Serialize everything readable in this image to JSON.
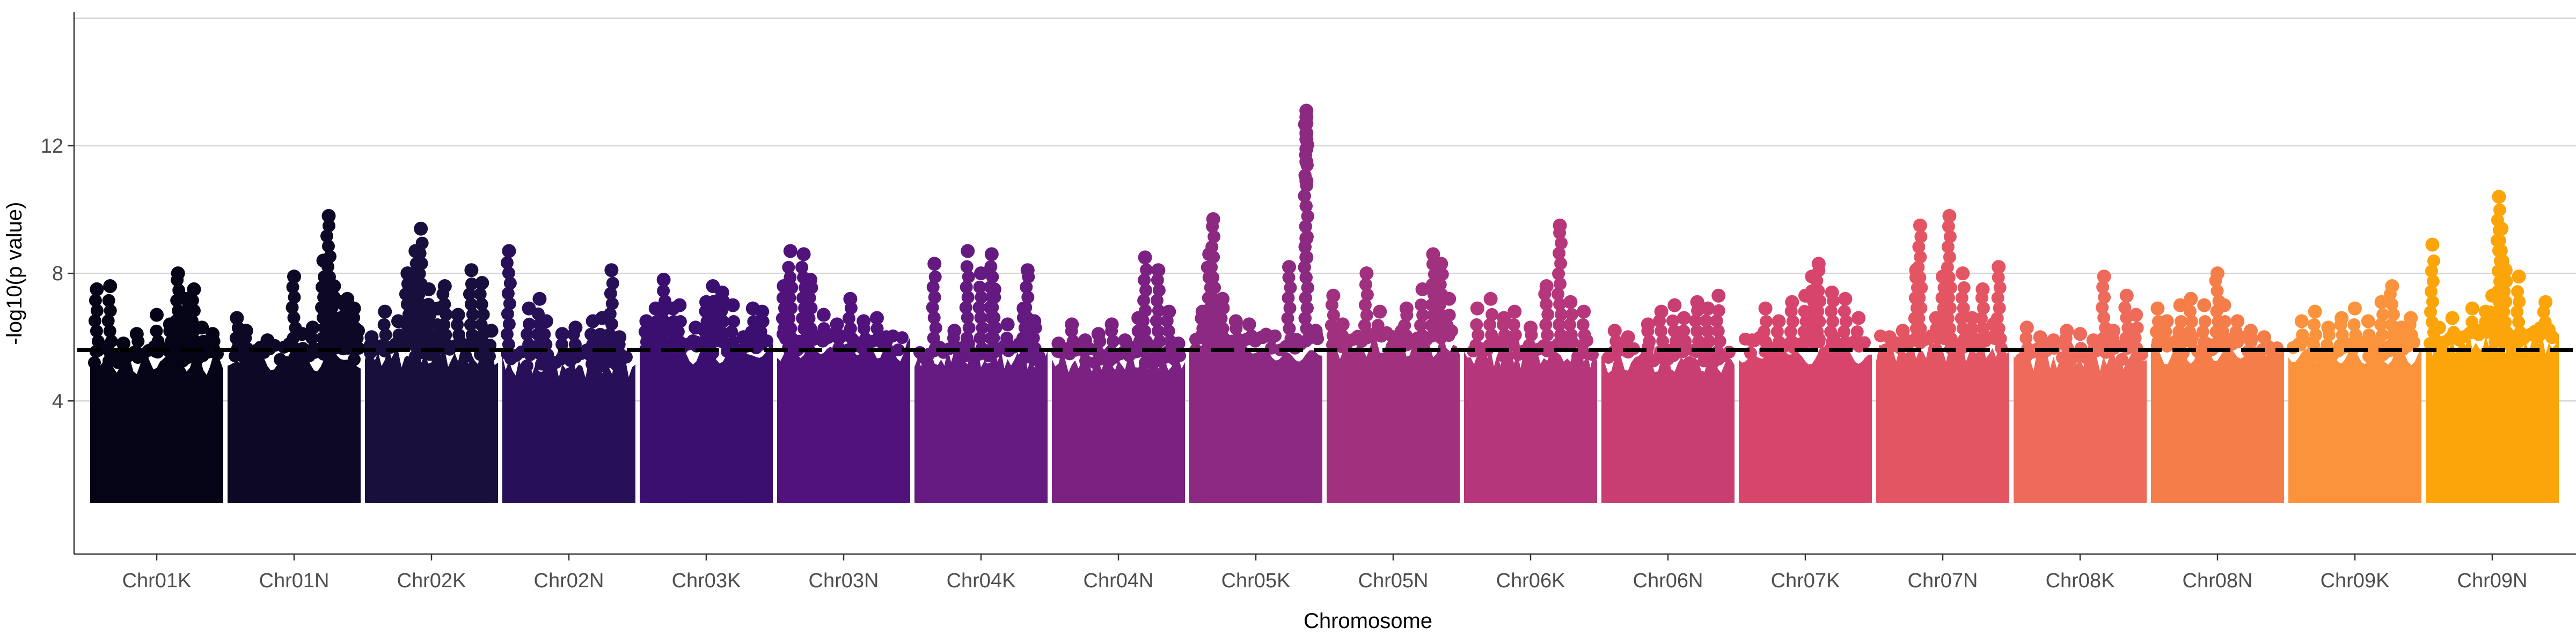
{
  "chart_data": {
    "type": "scatter",
    "subtype": "manhattan",
    "title": "",
    "xlabel": "Chromosome",
    "ylabel": "-log10(p value)",
    "ylim": [
      -0.8,
      16.2
    ],
    "yticks": [
      4,
      8,
      12
    ],
    "grid": "horizontal major",
    "threshold": 5.6,
    "threshold_style": "dashed black",
    "baseline": 1.0,
    "point_color_scale": "inferno",
    "chromosomes": [
      {
        "name": "Chr01K",
        "color": "#050416",
        "bulk_top": 5.2,
        "peaks": [
          [
            0.05,
            7.5
          ],
          [
            0.15,
            7.6
          ],
          [
            0.25,
            5.8
          ],
          [
            0.35,
            6.1
          ],
          [
            0.5,
            6.7
          ],
          [
            0.6,
            6.4
          ],
          [
            0.66,
            8.0
          ],
          [
            0.72,
            7.2
          ],
          [
            0.78,
            7.5
          ],
          [
            0.84,
            6.3
          ],
          [
            0.92,
            6.1
          ]
        ]
      },
      {
        "name": "Chr01N",
        "color": "#0c0826",
        "bulk_top": 5.3,
        "peaks": [
          [
            0.07,
            6.6
          ],
          [
            0.14,
            6.2
          ],
          [
            0.3,
            5.9
          ],
          [
            0.5,
            7.9
          ],
          [
            0.56,
            6.1
          ],
          [
            0.64,
            6.3
          ],
          [
            0.72,
            8.4
          ],
          [
            0.76,
            9.8
          ],
          [
            0.8,
            7.6
          ],
          [
            0.85,
            7.1
          ],
          [
            0.9,
            7.2
          ],
          [
            0.95,
            6.9
          ],
          [
            0.98,
            6.2
          ]
        ]
      },
      {
        "name": "Chr02K",
        "color": "#180f3d",
        "bulk_top": 5.4,
        "peaks": [
          [
            0.05,
            6.0
          ],
          [
            0.15,
            6.8
          ],
          [
            0.25,
            6.5
          ],
          [
            0.32,
            8.0
          ],
          [
            0.38,
            8.7
          ],
          [
            0.42,
            9.4
          ],
          [
            0.48,
            7.5
          ],
          [
            0.55,
            6.9
          ],
          [
            0.6,
            7.6
          ],
          [
            0.7,
            6.7
          ],
          [
            0.8,
            8.1
          ],
          [
            0.88,
            7.7
          ],
          [
            0.95,
            6.2
          ]
        ]
      },
      {
        "name": "Chr02N",
        "color": "#271057",
        "bulk_top": 5.1,
        "peaks": [
          [
            0.05,
            8.7
          ],
          [
            0.2,
            6.9
          ],
          [
            0.28,
            7.2
          ],
          [
            0.33,
            6.5
          ],
          [
            0.45,
            6.1
          ],
          [
            0.55,
            6.3
          ],
          [
            0.68,
            6.5
          ],
          [
            0.75,
            6.6
          ],
          [
            0.82,
            8.1
          ],
          [
            0.88,
            6.0
          ]
        ]
      },
      {
        "name": "Chr03K",
        "color": "#3b0f70",
        "bulk_top": 5.5,
        "peaks": [
          [
            0.05,
            6.5
          ],
          [
            0.12,
            6.9
          ],
          [
            0.18,
            7.8
          ],
          [
            0.25,
            6.9
          ],
          [
            0.3,
            7.0
          ],
          [
            0.42,
            6.3
          ],
          [
            0.5,
            7.1
          ],
          [
            0.55,
            7.6
          ],
          [
            0.62,
            7.4
          ],
          [
            0.7,
            7.0
          ],
          [
            0.78,
            6.0
          ],
          [
            0.85,
            6.9
          ],
          [
            0.92,
            6.8
          ]
        ]
      },
      {
        "name": "Chr03N",
        "color": "#51127c",
        "bulk_top": 5.6,
        "peaks": [
          [
            0.05,
            7.6
          ],
          [
            0.1,
            8.7
          ],
          [
            0.2,
            8.6
          ],
          [
            0.25,
            7.8
          ],
          [
            0.35,
            6.7
          ],
          [
            0.45,
            6.4
          ],
          [
            0.55,
            7.2
          ],
          [
            0.65,
            6.5
          ],
          [
            0.75,
            6.6
          ],
          [
            0.82,
            6.0
          ]
        ]
      },
      {
        "name": "Chr04K",
        "color": "#641a80",
        "bulk_top": 5.3,
        "peaks": [
          [
            0.15,
            8.3
          ],
          [
            0.3,
            6.2
          ],
          [
            0.4,
            8.7
          ],
          [
            0.5,
            8.0
          ],
          [
            0.58,
            8.6
          ],
          [
            0.6,
            7.5
          ],
          [
            0.7,
            6.4
          ],
          [
            0.82,
            6.9
          ],
          [
            0.85,
            8.1
          ],
          [
            0.9,
            6.5
          ]
        ]
      },
      {
        "name": "Chr04N",
        "color": "#7a2182",
        "bulk_top": 5.2,
        "peaks": [
          [
            0.05,
            5.8
          ],
          [
            0.15,
            6.4
          ],
          [
            0.25,
            5.9
          ],
          [
            0.35,
            6.1
          ],
          [
            0.45,
            6.4
          ],
          [
            0.55,
            5.9
          ],
          [
            0.65,
            6.6
          ],
          [
            0.7,
            8.5
          ],
          [
            0.8,
            8.1
          ],
          [
            0.88,
            6.8
          ],
          [
            0.95,
            5.8
          ]
        ]
      },
      {
        "name": "Chr05K",
        "color": "#8c2981",
        "bulk_top": 5.6,
        "peaks": [
          [
            0.1,
            6.8
          ],
          [
            0.15,
            8.6
          ],
          [
            0.18,
            9.7
          ],
          [
            0.25,
            7.2
          ],
          [
            0.35,
            6.5
          ],
          [
            0.45,
            6.4
          ],
          [
            0.55,
            6.0
          ],
          [
            0.62,
            6.0
          ],
          [
            0.75,
            8.2
          ],
          [
            0.88,
            13.1
          ],
          [
            0.88,
            12.9
          ],
          [
            0.88,
            12.7
          ],
          [
            0.88,
            12.4
          ],
          [
            0.88,
            12.2
          ],
          [
            0.88,
            11.9
          ],
          [
            0.88,
            11.5
          ],
          [
            0.88,
            10.9
          ],
          [
            0.88,
            9.1
          ],
          [
            0.88,
            8.5
          ],
          [
            0.95,
            6.2
          ]
        ]
      },
      {
        "name": "Chr05N",
        "color": "#a1307e",
        "bulk_top": 5.7,
        "peaks": [
          [
            0.05,
            7.3
          ],
          [
            0.12,
            6.4
          ],
          [
            0.3,
            8.0
          ],
          [
            0.4,
            6.8
          ],
          [
            0.5,
            6.0
          ],
          [
            0.6,
            6.9
          ],
          [
            0.72,
            7.5
          ],
          [
            0.8,
            8.6
          ],
          [
            0.86,
            8.3
          ],
          [
            0.92,
            7.2
          ]
        ]
      },
      {
        "name": "Chr06K",
        "color": "#b5367a",
        "bulk_top": 5.4,
        "peaks": [
          [
            0.1,
            6.9
          ],
          [
            0.2,
            7.2
          ],
          [
            0.3,
            6.6
          ],
          [
            0.38,
            6.8
          ],
          [
            0.5,
            6.3
          ],
          [
            0.62,
            7.6
          ],
          [
            0.72,
            9.5
          ],
          [
            0.8,
            7.1
          ],
          [
            0.9,
            6.8
          ]
        ]
      },
      {
        "name": "Chr06N",
        "color": "#c83e73",
        "bulk_top": 5.2,
        "peaks": [
          [
            0.1,
            6.2
          ],
          [
            0.2,
            6.0
          ],
          [
            0.35,
            6.4
          ],
          [
            0.45,
            6.8
          ],
          [
            0.55,
            7.0
          ],
          [
            0.62,
            6.6
          ],
          [
            0.72,
            7.1
          ],
          [
            0.8,
            6.9
          ],
          [
            0.88,
            7.3
          ]
        ]
      },
      {
        "name": "Chr07K",
        "color": "#d8456c",
        "bulk_top": 5.5,
        "peaks": [
          [
            0.1,
            5.9
          ],
          [
            0.2,
            6.9
          ],
          [
            0.3,
            6.5
          ],
          [
            0.4,
            7.1
          ],
          [
            0.5,
            7.3
          ],
          [
            0.55,
            7.9
          ],
          [
            0.6,
            8.3
          ],
          [
            0.7,
            7.4
          ],
          [
            0.8,
            7.2
          ],
          [
            0.9,
            6.6
          ]
        ]
      },
      {
        "name": "Chr07N",
        "color": "#e45563",
        "bulk_top": 5.6,
        "peaks": [
          [
            0.1,
            6.0
          ],
          [
            0.2,
            6.2
          ],
          [
            0.3,
            8.1
          ],
          [
            0.33,
            9.5
          ],
          [
            0.45,
            6.6
          ],
          [
            0.5,
            7.9
          ],
          [
            0.55,
            9.8
          ],
          [
            0.65,
            8.0
          ],
          [
            0.72,
            6.6
          ],
          [
            0.8,
            7.5
          ],
          [
            0.88,
            6.4
          ],
          [
            0.92,
            8.2
          ]
        ]
      },
      {
        "name": "Chr08K",
        "color": "#ee6a5a",
        "bulk_top": 5.3,
        "peaks": [
          [
            0.1,
            6.3
          ],
          [
            0.2,
            6.0
          ],
          [
            0.3,
            5.9
          ],
          [
            0.4,
            6.2
          ],
          [
            0.5,
            6.1
          ],
          [
            0.6,
            5.9
          ],
          [
            0.68,
            7.9
          ],
          [
            0.75,
            6.2
          ],
          [
            0.85,
            7.3
          ],
          [
            0.92,
            6.7
          ]
        ]
      },
      {
        "name": "Chr08N",
        "color": "#f57d4a",
        "bulk_top": 5.5,
        "peaks": [
          [
            0.05,
            6.9
          ],
          [
            0.12,
            6.5
          ],
          [
            0.22,
            7.0
          ],
          [
            0.3,
            7.2
          ],
          [
            0.4,
            7.0
          ],
          [
            0.5,
            8.0
          ],
          [
            0.55,
            7.0
          ],
          [
            0.65,
            6.5
          ],
          [
            0.75,
            6.2
          ],
          [
            0.85,
            6.0
          ]
        ]
      },
      {
        "name": "Chr09K",
        "color": "#fb923c",
        "bulk_top": 5.4,
        "peaks": [
          [
            0.1,
            6.5
          ],
          [
            0.2,
            6.8
          ],
          [
            0.3,
            6.3
          ],
          [
            0.4,
            6.6
          ],
          [
            0.5,
            6.9
          ],
          [
            0.6,
            6.5
          ],
          [
            0.7,
            7.1
          ],
          [
            0.78,
            7.6
          ],
          [
            0.85,
            6.3
          ],
          [
            0.92,
            6.6
          ]
        ]
      },
      {
        "name": "Chr09N",
        "color": "#fca50a",
        "bulk_top": 5.8,
        "peaks": [
          [
            0.05,
            8.9
          ],
          [
            0.1,
            6.3
          ],
          [
            0.2,
            6.6
          ],
          [
            0.35,
            6.9
          ],
          [
            0.45,
            6.8
          ],
          [
            0.5,
            7.3
          ],
          [
            0.55,
            10.4
          ],
          [
            0.57,
            9.4
          ],
          [
            0.6,
            8.1
          ],
          [
            0.7,
            7.9
          ],
          [
            0.8,
            6.1
          ],
          [
            0.9,
            7.1
          ],
          [
            0.95,
            6.0
          ]
        ]
      }
    ]
  }
}
